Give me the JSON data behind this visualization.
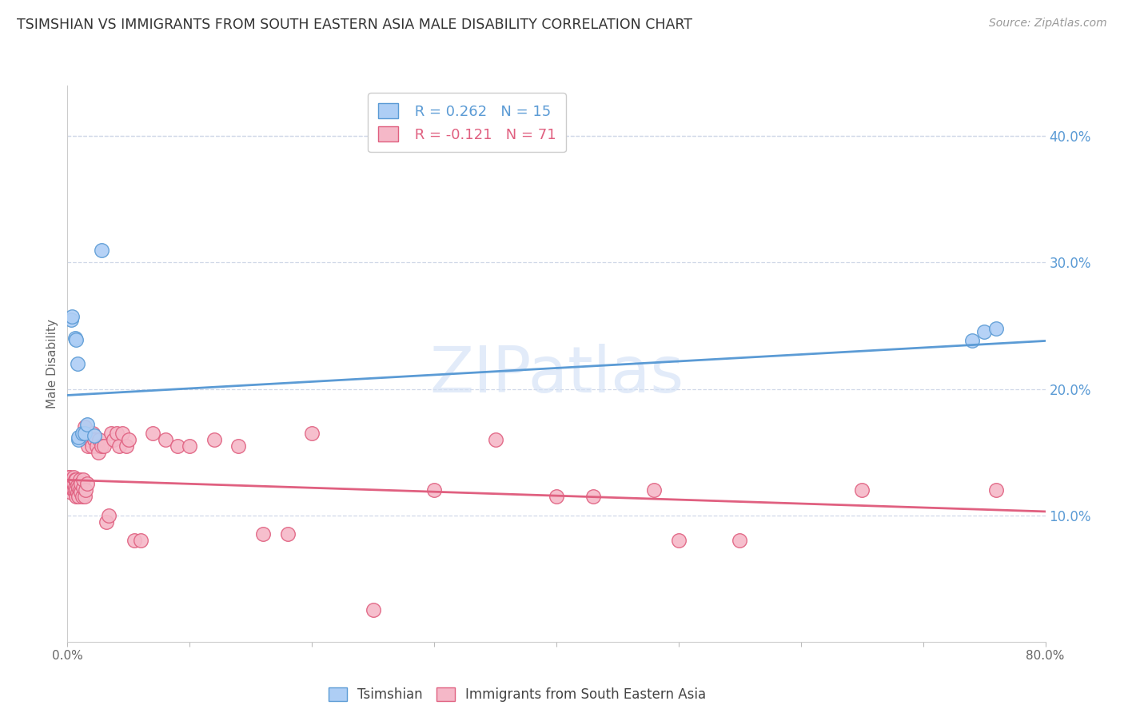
{
  "title": "TSIMSHIAN VS IMMIGRANTS FROM SOUTH EASTERN ASIA MALE DISABILITY CORRELATION CHART",
  "source": "Source: ZipAtlas.com",
  "ylabel": "Male Disability",
  "xlim": [
    0.0,
    0.8
  ],
  "ylim": [
    0.0,
    0.44
  ],
  "xticks": [
    0.0,
    0.1,
    0.2,
    0.3,
    0.4,
    0.5,
    0.6,
    0.7,
    0.8
  ],
  "xticklabels": [
    "0.0%",
    "",
    "",
    "",
    "",
    "",
    "",
    "",
    "80.0%"
  ],
  "yticks_right": [
    0.1,
    0.2,
    0.3,
    0.4
  ],
  "ytick_right_labels": [
    "10.0%",
    "20.0%",
    "30.0%",
    "40.0%"
  ],
  "legend_blue_r": "R = 0.262",
  "legend_blue_n": "N = 15",
  "legend_pink_r": "R = -0.121",
  "legend_pink_n": "N = 71",
  "legend_blue_label": "Tsimshian",
  "legend_pink_label": "Immigrants from South Eastern Asia",
  "blue_color": "#aecef5",
  "blue_line_color": "#5b9bd5",
  "pink_color": "#f5b8c8",
  "pink_line_color": "#e06080",
  "background_color": "#ffffff",
  "grid_color": "#d0d8e8",
  "watermark_color": "#d0dff5",
  "blue_scatter_x": [
    0.003,
    0.004,
    0.006,
    0.007,
    0.008,
    0.009,
    0.009,
    0.012,
    0.014,
    0.016,
    0.022,
    0.028,
    0.74,
    0.75,
    0.76
  ],
  "blue_scatter_y": [
    0.255,
    0.257,
    0.24,
    0.239,
    0.22,
    0.16,
    0.162,
    0.165,
    0.165,
    0.172,
    0.163,
    0.31,
    0.238,
    0.245,
    0.248
  ],
  "pink_scatter_x": [
    0.001,
    0.002,
    0.002,
    0.003,
    0.003,
    0.004,
    0.004,
    0.005,
    0.005,
    0.005,
    0.006,
    0.006,
    0.006,
    0.007,
    0.007,
    0.007,
    0.008,
    0.008,
    0.009,
    0.009,
    0.01,
    0.01,
    0.011,
    0.011,
    0.012,
    0.013,
    0.013,
    0.014,
    0.014,
    0.015,
    0.016,
    0.017,
    0.018,
    0.02,
    0.021,
    0.022,
    0.024,
    0.025,
    0.026,
    0.028,
    0.03,
    0.032,
    0.034,
    0.036,
    0.038,
    0.04,
    0.042,
    0.045,
    0.048,
    0.05,
    0.055,
    0.06,
    0.07,
    0.08,
    0.09,
    0.1,
    0.12,
    0.14,
    0.16,
    0.18,
    0.2,
    0.25,
    0.3,
    0.35,
    0.4,
    0.43,
    0.48,
    0.5,
    0.55,
    0.65,
    0.76
  ],
  "pink_scatter_y": [
    0.13,
    0.125,
    0.13,
    0.118,
    0.122,
    0.125,
    0.128,
    0.12,
    0.125,
    0.13,
    0.118,
    0.122,
    0.128,
    0.115,
    0.12,
    0.128,
    0.118,
    0.124,
    0.115,
    0.122,
    0.12,
    0.128,
    0.118,
    0.125,
    0.115,
    0.122,
    0.128,
    0.115,
    0.17,
    0.12,
    0.125,
    0.155,
    0.16,
    0.155,
    0.165,
    0.16,
    0.155,
    0.15,
    0.16,
    0.155,
    0.155,
    0.095,
    0.1,
    0.165,
    0.16,
    0.165,
    0.155,
    0.165,
    0.155,
    0.16,
    0.08,
    0.08,
    0.165,
    0.16,
    0.155,
    0.155,
    0.16,
    0.155,
    0.085,
    0.085,
    0.165,
    0.025,
    0.12,
    0.16,
    0.115,
    0.115,
    0.12,
    0.08,
    0.08,
    0.12,
    0.12
  ],
  "blue_line_x0": 0.0,
  "blue_line_x1": 0.8,
  "blue_line_y0": 0.195,
  "blue_line_y1": 0.238,
  "pink_line_x0": 0.0,
  "pink_line_x1": 0.8,
  "pink_line_y0": 0.128,
  "pink_line_y1": 0.103
}
